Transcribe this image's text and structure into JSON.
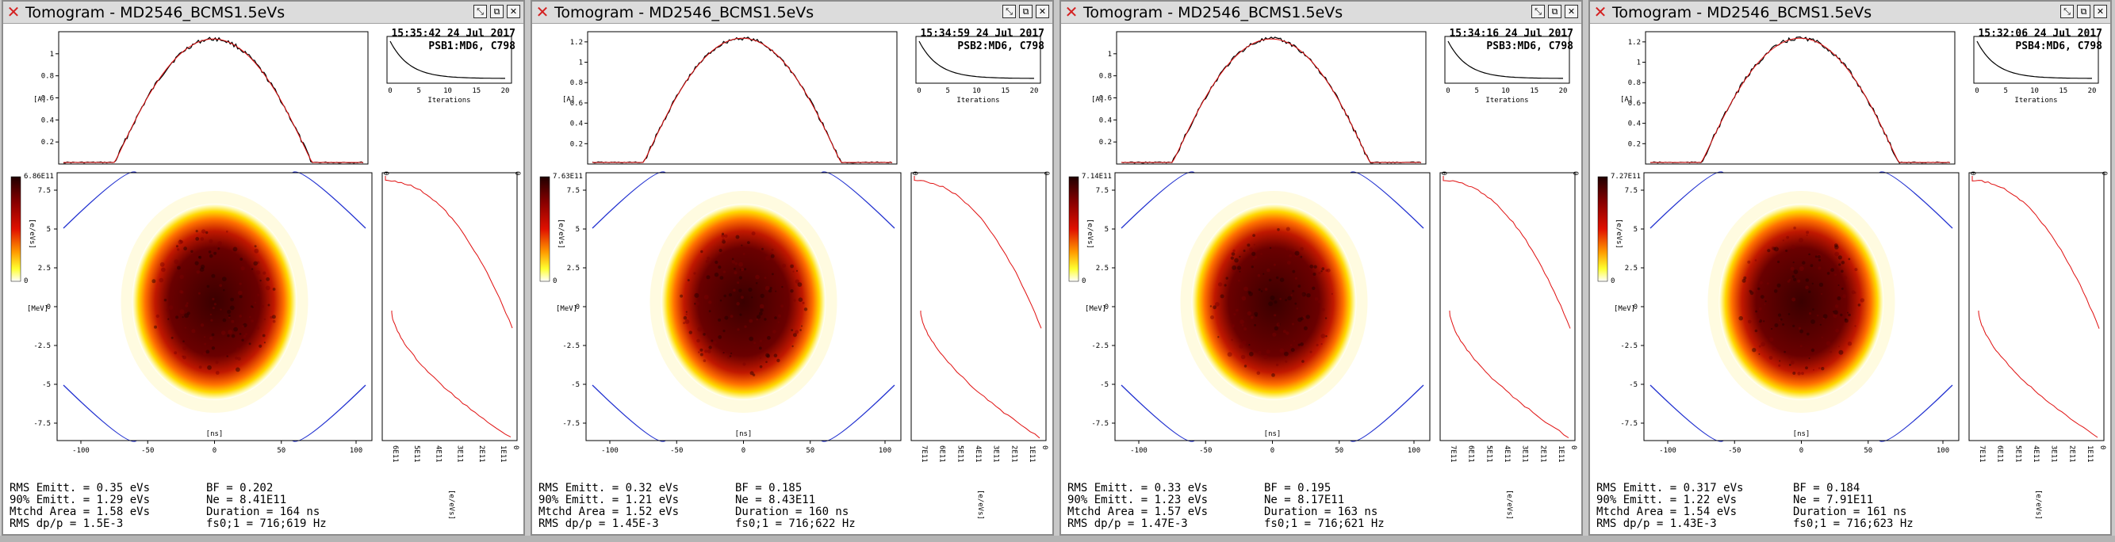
{
  "windows": [
    {
      "title": "Tomogram - MD2546_BCMS1.5eVs",
      "time": "15:35:42 24 Jul 2017",
      "ring": "PSB1:MD6, C798",
      "colorbar_max": "6.86E11",
      "profile_axis_max": "1",
      "profile_ticks": [
        "0.2",
        "0.4",
        "0.6",
        "0.8",
        "1"
      ],
      "profile_ymax": 1.2,
      "dist_ticks": [
        "6E11",
        "5E11",
        "4E11",
        "3E11",
        "2E11",
        "1E11"
      ],
      "stats": {
        "rms_emitt": "RMS Emitt. = 0.35 eVs",
        "emitt90": "90% Emitt. = 1.29 eVs",
        "mtchd_area": "Mtchd Area = 1.58 eVs",
        "rms_dpp": "RMS dp/p = 1.5E-3",
        "bf": "BF = 0.202",
        "ne": "Ne = 8.41E11",
        "duration": "Duration = 164 ns",
        "fs": "fs0;1 = 716;619 Hz"
      }
    },
    {
      "title": "Tomogram - MD2546_BCMS1.5eVs",
      "time": "15:34:59 24 Jul 2017",
      "ring": "PSB2:MD6, C798",
      "colorbar_max": "7.63E11",
      "profile_axis_max": "1.2",
      "profile_ticks": [
        "0.2",
        "0.4",
        "0.6",
        "0.8",
        "1",
        "1.2"
      ],
      "profile_ymax": 1.3,
      "dist_ticks": [
        "7E11",
        "6E11",
        "5E11",
        "4E11",
        "3E11",
        "2E11",
        "1E11"
      ],
      "stats": {
        "rms_emitt": "RMS Emitt. = 0.32 eVs",
        "emitt90": "90% Emitt. = 1.21 eVs",
        "mtchd_area": "Mtchd Area = 1.52 eVs",
        "rms_dpp": "RMS dp/p = 1.45E-3",
        "bf": "BF = 0.185",
        "ne": "Ne = 8.43E11",
        "duration": "Duration = 160 ns",
        "fs": "fs0;1 = 716;622 Hz"
      }
    },
    {
      "title": "Tomogram - MD2546_BCMS1.5eVs",
      "time": "15:34:16 24 Jul 2017",
      "ring": "PSB3:MD6, C798",
      "colorbar_max": "7.14E11",
      "profile_axis_max": "1",
      "profile_ticks": [
        "0.2",
        "0.4",
        "0.6",
        "0.8",
        "1"
      ],
      "profile_ymax": 1.2,
      "dist_ticks": [
        "7E11",
        "6E11",
        "5E11",
        "4E11",
        "3E11",
        "2E11",
        "1E11"
      ],
      "stats": {
        "rms_emitt": "RMS Emitt. = 0.33 eVs",
        "emitt90": "90% Emitt. = 1.23 eVs",
        "mtchd_area": "Mtchd Area = 1.57 eVs",
        "rms_dpp": "RMS dp/p = 1.47E-3",
        "bf": "BF = 0.195",
        "ne": "Ne = 8.17E11",
        "duration": "Duration = 163 ns",
        "fs": "fs0;1 = 716;621 Hz"
      }
    },
    {
      "title": "Tomogram - MD2546_BCMS1.5eVs",
      "time": "15:32:06 24 Jul 2017",
      "ring": "PSB4:MD6, C798",
      "colorbar_max": "7.27E11",
      "profile_axis_max": "1.2",
      "profile_ticks": [
        "0.2",
        "0.4",
        "0.6",
        "0.8",
        "1",
        "1.2"
      ],
      "profile_ymax": 1.3,
      "dist_ticks": [
        "7E11",
        "6E11",
        "5E11",
        "4E11",
        "3E11",
        "2E11",
        "1E11"
      ],
      "stats": {
        "rms_emitt": "RMS Emitt. = 0.317 eVs",
        "emitt90": "90% Emitt. = 1.22 eVs",
        "mtchd_area": "Mtchd Area = 1.54 eVs",
        "rms_dpp": "RMS dp/p = 1.43E-3",
        "bf": "BF = 0.184",
        "ne": "Ne = 7.91E11",
        "duration": "Duration = 161 ns",
        "fs": "fs0;1 = 716;623 Hz"
      }
    }
  ],
  "common": {
    "profile_ylabel": "[A]",
    "phase_ylabel": "[MeV]",
    "phase_xlabel": "[ns]",
    "colorbar_label": "[e/eVs]",
    "colorbar_min": "0",
    "conv_xlabel": "Iterations",
    "conv_xticks": [
      "0",
      "5",
      "10",
      "15",
      "20"
    ],
    "phase_xticks": [
      "-100",
      "-50",
      "0",
      "50",
      "100"
    ],
    "phase_yticks": [
      "7.5",
      "5",
      "2.5",
      "0",
      "-2.5",
      "-5",
      "-7.5"
    ],
    "dist_corner_top": "0",
    "dist_zero": "0",
    "side_unit": "[e/eVs]",
    "icons": [
      "close-icon",
      "minimize-icon",
      "maximize-icon",
      "close-window-icon"
    ],
    "colors": {
      "line_red": "#e01010",
      "line_black": "#000000",
      "blue": "#2030d0"
    }
  }
}
